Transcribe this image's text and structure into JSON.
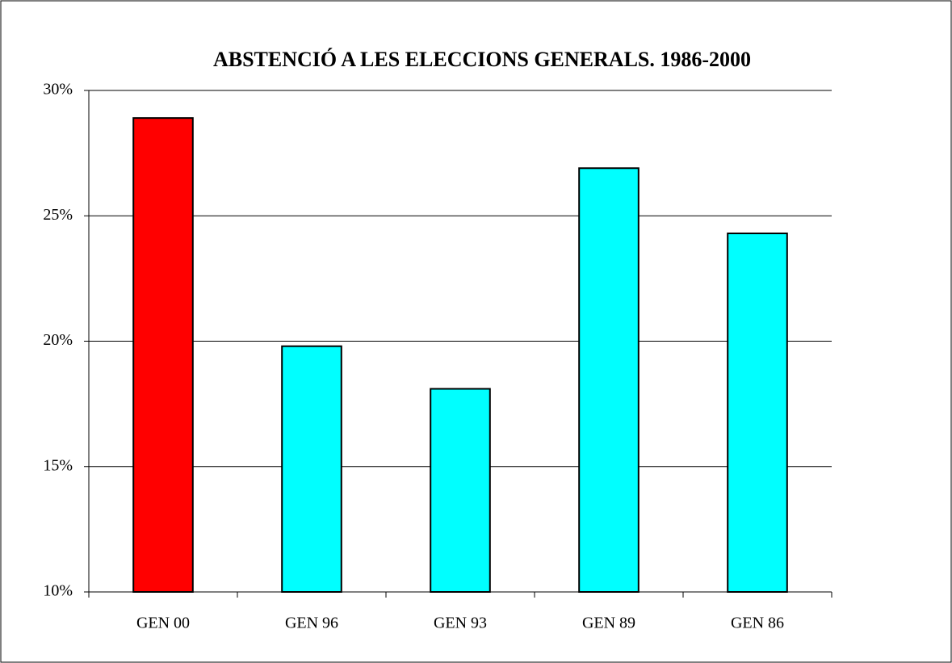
{
  "chart_data": {
    "type": "bar",
    "title": "ABSTENCIÓ A LES ELECCIONS GENERALS. 1986-2000",
    "categories": [
      "GEN 00",
      "GEN 96",
      "GEN 93",
      "GEN 89",
      "GEN 86"
    ],
    "values": [
      28.9,
      19.8,
      18.1,
      26.9,
      24.3
    ],
    "colors": [
      "#ff0000",
      "#00ffff",
      "#00ffff",
      "#00ffff",
      "#00ffff"
    ],
    "ylim": [
      10,
      30
    ],
    "yticks": [
      {
        "value": 10,
        "label": "10%"
      },
      {
        "value": 15,
        "label": "15%"
      },
      {
        "value": 20,
        "label": "20%"
      },
      {
        "value": 25,
        "label": "25%"
      },
      {
        "value": 30,
        "label": "30%"
      }
    ],
    "grid": true
  }
}
